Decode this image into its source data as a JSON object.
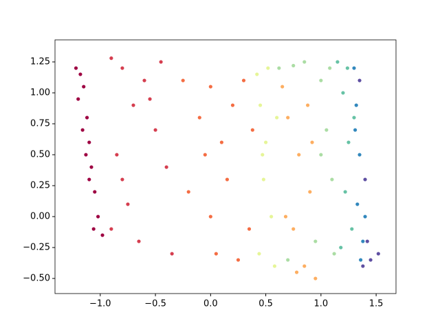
{
  "chart_data": {
    "type": "scatter",
    "xlim": [
      -1.41,
      1.68
    ],
    "ylim": [
      -0.622,
      1.428
    ],
    "xticks": [
      {
        "value": -1.0,
        "label": "−1.0"
      },
      {
        "value": -0.5,
        "label": "−0.5"
      },
      {
        "value": 0.0,
        "label": "0.0"
      },
      {
        "value": 0.5,
        "label": "0.5"
      },
      {
        "value": 1.0,
        "label": "1.0"
      },
      {
        "value": 1.5,
        "label": "1.5"
      }
    ],
    "yticks": [
      {
        "value": -0.5,
        "label": "−0.50"
      },
      {
        "value": -0.25,
        "label": "−0.25"
      },
      {
        "value": 0.0,
        "label": "0.00"
      },
      {
        "value": 0.25,
        "label": "0.25"
      },
      {
        "value": 0.5,
        "label": "0.50"
      },
      {
        "value": 0.75,
        "label": "0.75"
      },
      {
        "value": 1.0,
        "label": "1.00"
      },
      {
        "value": 1.25,
        "label": "1.25"
      }
    ],
    "grid": false,
    "series": [
      {
        "color": "#9e0142",
        "x": [
          -1.22,
          -1.18,
          -1.15,
          -1.2,
          -1.12,
          -1.1,
          -1.16,
          -1.08,
          -1.05,
          -1.1,
          -1.02,
          -0.98,
          -1.06,
          -1.13
        ],
        "values": [
          1.2,
          1.15,
          1.05,
          0.95,
          0.8,
          0.6,
          0.7,
          0.4,
          0.2,
          0.3,
          0.0,
          -0.15,
          -0.1,
          0.5
        ]
      },
      {
        "color": "#d53e4f",
        "x": [
          -0.9,
          -0.8,
          -0.7,
          -0.6,
          -0.85,
          -0.5,
          -0.75,
          -0.65,
          -0.4,
          -0.9,
          -0.55,
          -0.35,
          -0.8,
          -0.45
        ],
        "values": [
          1.28,
          1.2,
          0.9,
          1.1,
          0.5,
          0.7,
          0.1,
          -0.2,
          0.4,
          -0.1,
          0.95,
          -0.3,
          0.3,
          1.25
        ]
      },
      {
        "color": "#f46d43",
        "x": [
          -0.25,
          -0.1,
          0.0,
          0.1,
          0.2,
          0.3,
          -0.2,
          0.05,
          0.15,
          0.35,
          -0.05,
          0.25,
          0.38,
          0.0
        ],
        "values": [
          1.1,
          0.8,
          1.05,
          0.6,
          0.9,
          1.1,
          0.2,
          -0.3,
          0.3,
          -0.1,
          0.5,
          -0.35,
          0.7,
          0.0
        ]
      },
      {
        "color": "#e6f598",
        "x": [
          0.42,
          0.45,
          0.5,
          0.48,
          0.55,
          0.44,
          0.52,
          0.58,
          0.47,
          0.6
        ],
        "values": [
          1.15,
          0.9,
          0.6,
          0.3,
          0.0,
          -0.3,
          1.2,
          -0.4,
          0.5,
          0.8
        ]
      },
      {
        "color": "#fdae61",
        "x": [
          0.65,
          0.7,
          0.8,
          0.9,
          0.75,
          0.85,
          0.95,
          0.68,
          0.88,
          0.78,
          0.92
        ],
        "values": [
          1.05,
          0.8,
          0.5,
          0.2,
          -0.1,
          -0.4,
          -0.5,
          0.0,
          0.9,
          -0.45,
          0.6
        ]
      },
      {
        "color": "#abdda4",
        "x": [
          0.62,
          0.75,
          0.85,
          1.0,
          1.05,
          1.1,
          0.95,
          1.12,
          0.7,
          1.0,
          1.08
        ],
        "values": [
          1.2,
          1.22,
          1.25,
          1.1,
          0.7,
          0.3,
          -0.2,
          -0.3,
          -0.35,
          0.5,
          1.2
        ]
      },
      {
        "color": "#66c2a5",
        "x": [
          1.15,
          1.2,
          1.25,
          1.22,
          1.28,
          1.18,
          1.3,
          1.24
        ],
        "values": [
          1.25,
          1.0,
          0.6,
          0.2,
          -0.1,
          -0.25,
          0.8,
          1.2
        ]
      },
      {
        "color": "#3288bd",
        "x": [
          1.3,
          1.32,
          1.35,
          1.33,
          1.38,
          1.36,
          1.4,
          1.31
        ],
        "values": [
          1.2,
          0.9,
          0.5,
          0.1,
          -0.2,
          -0.35,
          0.0,
          0.7
        ]
      },
      {
        "color": "#5e4fa2",
        "x": [
          1.35,
          1.4,
          1.42,
          1.45,
          1.52,
          1.38
        ],
        "values": [
          1.1,
          0.3,
          -0.2,
          -0.35,
          -0.3,
          -0.4
        ]
      }
    ]
  }
}
